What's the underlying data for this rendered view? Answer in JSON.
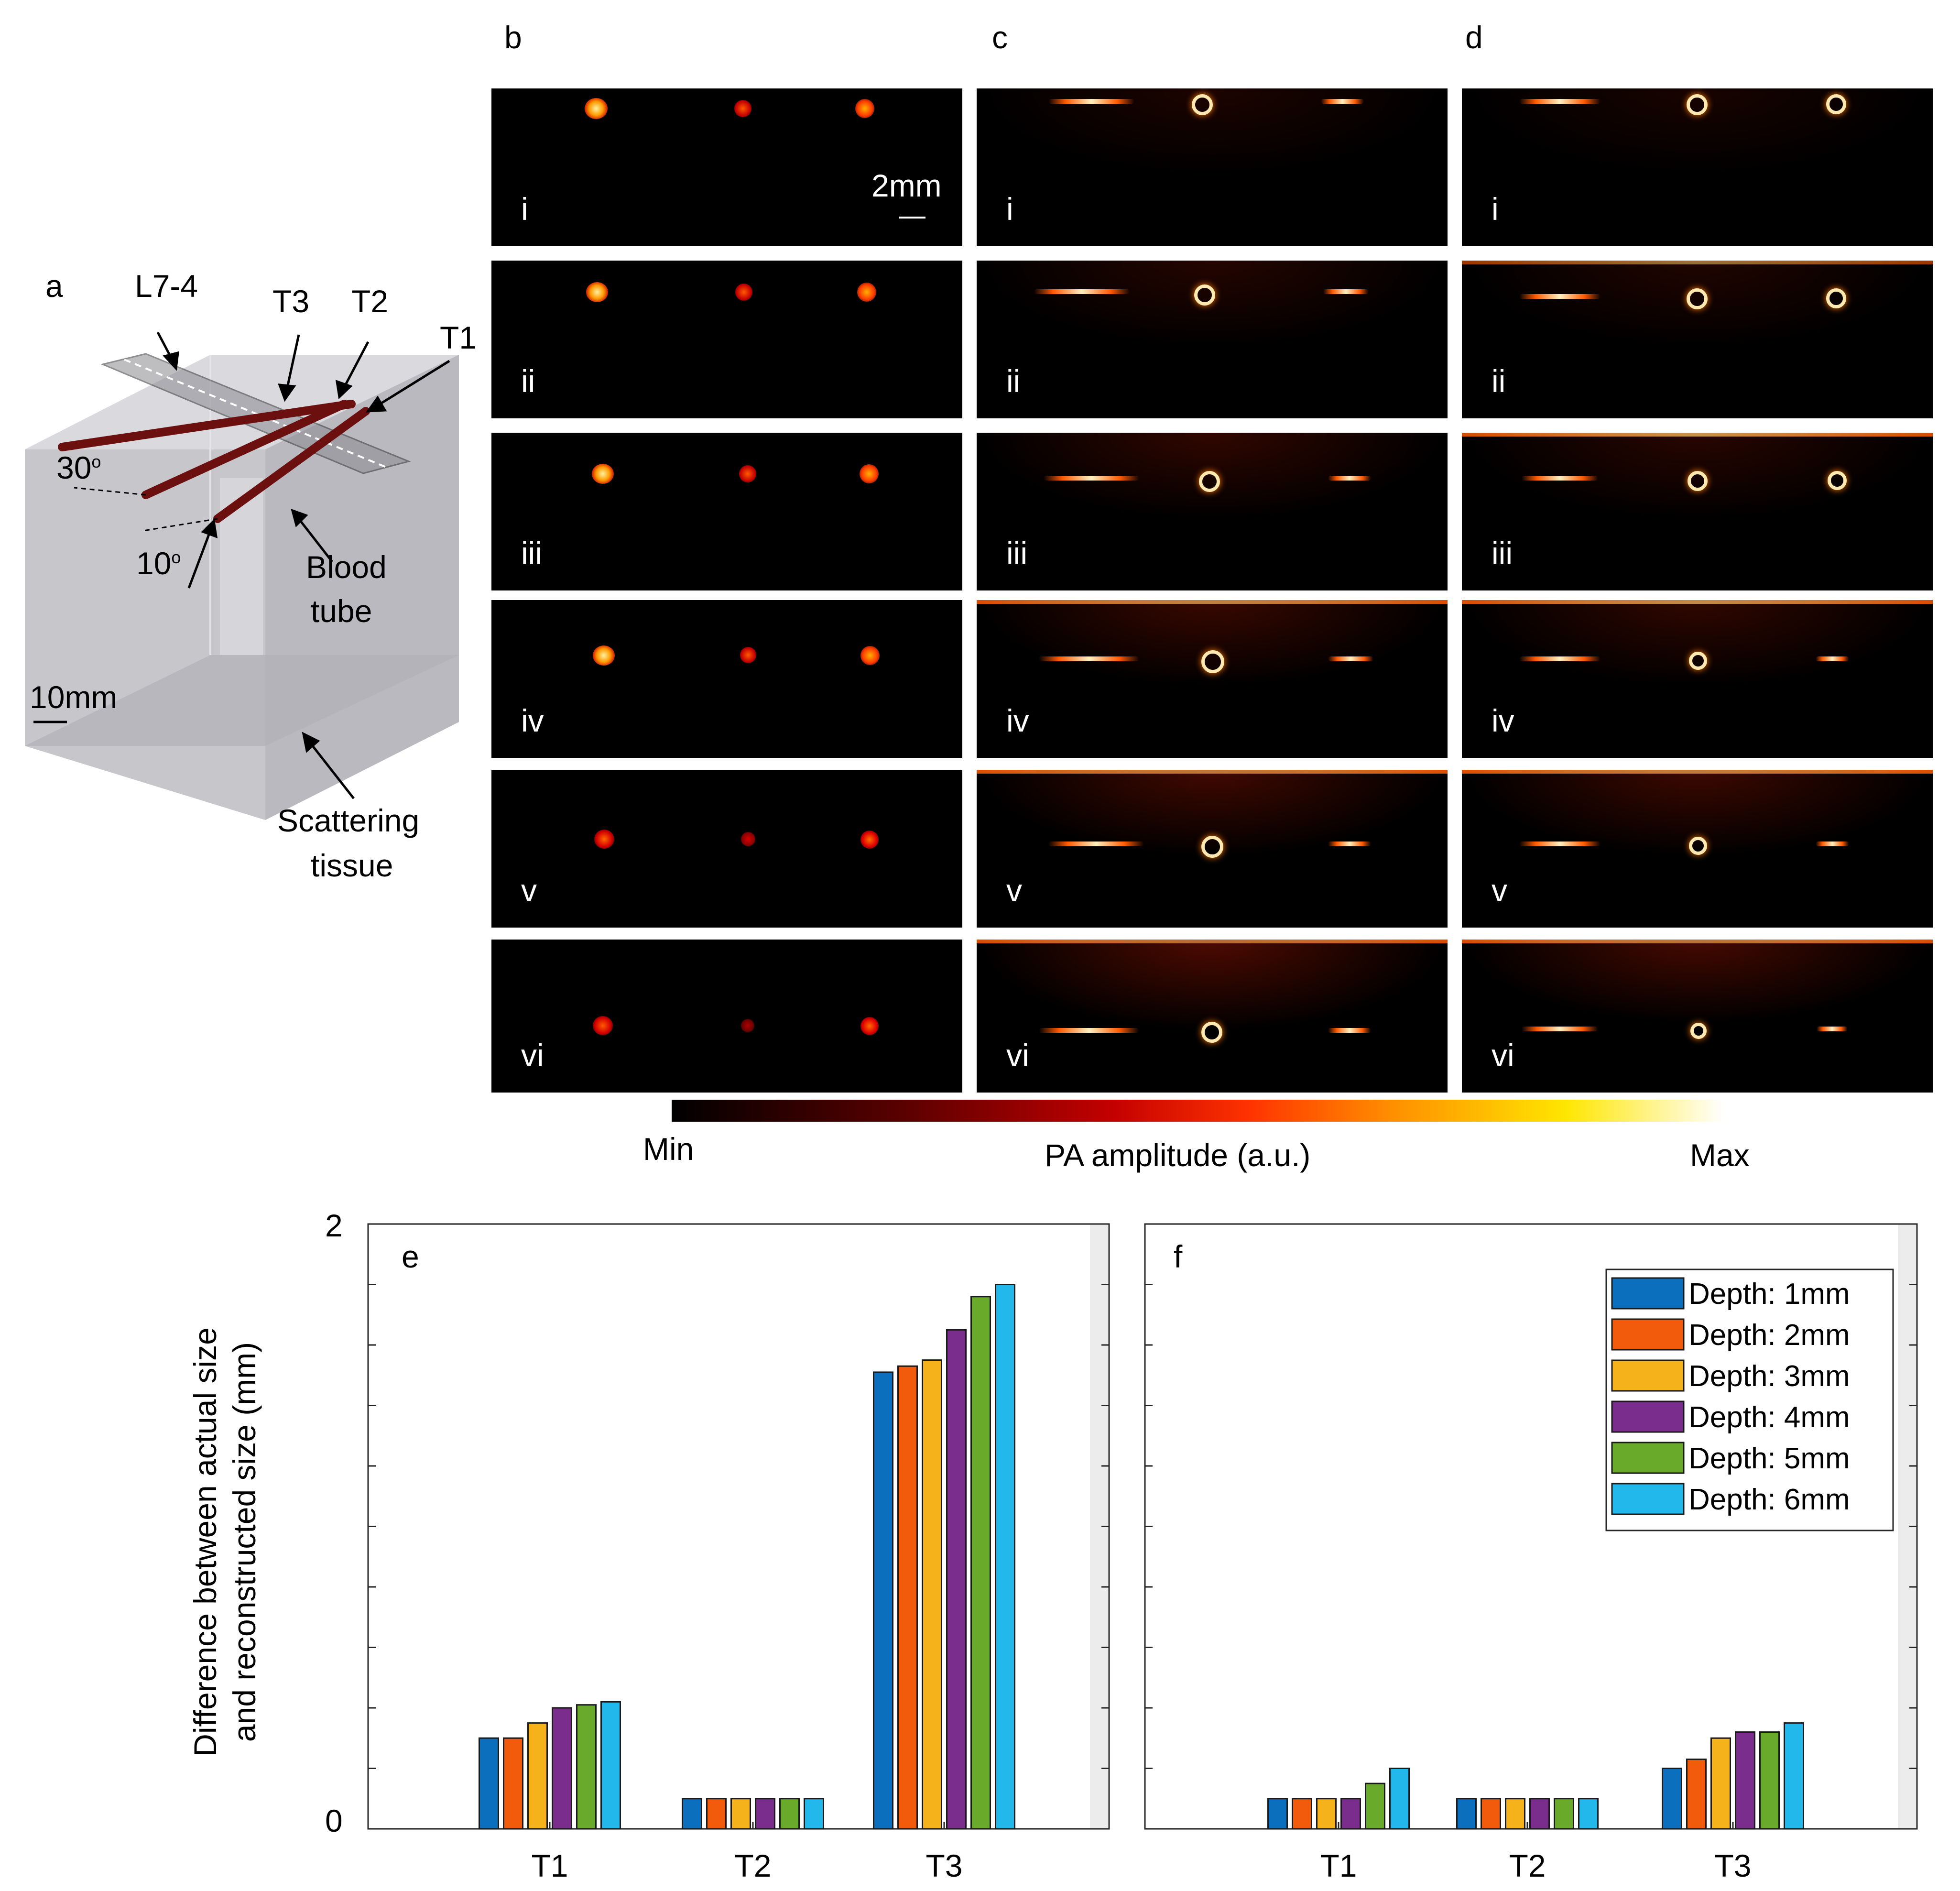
{
  "panel_letters": {
    "a": "a",
    "b": "b",
    "c": "c",
    "d": "d",
    "e": "e",
    "f": "f"
  },
  "diagram": {
    "probe_label": "L7-4",
    "tube_labels": [
      "T3",
      "T2",
      "T1"
    ],
    "angle_30": "30",
    "angle_10": "10",
    "angle_unit": "o",
    "blood_tube_line1": "Blood",
    "blood_tube_line2": "tube",
    "scale_bar": "10mm",
    "tissue_line1": "Scattering",
    "tissue_line2": "tissue"
  },
  "image_panels": {
    "roman_labels": [
      "i",
      "ii",
      "iii",
      "iv",
      "v",
      "vi"
    ],
    "scale_bar": "2mm"
  },
  "colorbar": {
    "min_label": "Min",
    "title": "PA amplitude  (a.u.)",
    "max_label": "Max",
    "colors": [
      "#000000",
      "#5a0000",
      "#c40000",
      "#ff3300",
      "#ff8c00",
      "#ffe600",
      "#ffffff"
    ]
  },
  "chart_data": [
    {
      "panel": "e",
      "type": "bar",
      "categories": [
        "T1",
        "T2",
        "T3"
      ],
      "ylabel_line1": "Difference between actual size",
      "ylabel_line2": "and reconstructed size (mm)",
      "ylim": [
        0,
        2
      ],
      "yticks": [
        "0",
        "2"
      ],
      "series": [
        {
          "name": "Depth: 1mm",
          "color": "#0b6fbd",
          "values": [
            0.3,
            0.1,
            1.51
          ]
        },
        {
          "name": "Depth: 2mm",
          "color": "#f25a0c",
          "values": [
            0.3,
            0.1,
            1.53
          ]
        },
        {
          "name": "Depth: 3mm",
          "color": "#f5b21a",
          "values": [
            0.35,
            0.1,
            1.55
          ]
        },
        {
          "name": "Depth: 4mm",
          "color": "#7b2d8e",
          "values": [
            0.4,
            0.1,
            1.65
          ]
        },
        {
          "name": "Depth: 5mm",
          "color": "#6aaa2b",
          "values": [
            0.41,
            0.1,
            1.76
          ]
        },
        {
          "name": "Depth: 6mm",
          "color": "#22b8ec",
          "values": [
            0.42,
            0.1,
            1.8
          ]
        }
      ]
    },
    {
      "panel": "f",
      "type": "bar",
      "categories": [
        "T1",
        "T2",
        "T3"
      ],
      "ylim": [
        0,
        2
      ],
      "legend_position": "top-right",
      "series": [
        {
          "name": "Depth: 1mm",
          "color": "#0b6fbd",
          "values": [
            0.1,
            0.1,
            0.2
          ]
        },
        {
          "name": "Depth: 2mm",
          "color": "#f25a0c",
          "values": [
            0.1,
            0.1,
            0.23
          ]
        },
        {
          "name": "Depth: 3mm",
          "color": "#f5b21a",
          "values": [
            0.1,
            0.1,
            0.3
          ]
        },
        {
          "name": "Depth: 4mm",
          "color": "#7b2d8e",
          "values": [
            0.1,
            0.1,
            0.32
          ]
        },
        {
          "name": "Depth: 5mm",
          "color": "#6aaa2b",
          "values": [
            0.15,
            0.1,
            0.32
          ]
        },
        {
          "name": "Depth: 6mm",
          "color": "#22b8ec",
          "values": [
            0.2,
            0.1,
            0.35
          ]
        }
      ]
    }
  ]
}
